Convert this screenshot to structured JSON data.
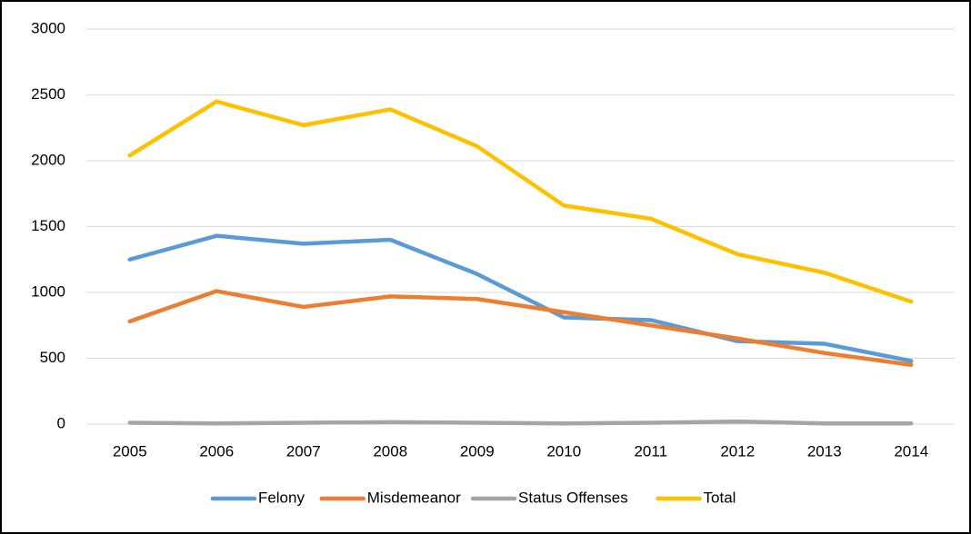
{
  "chart_data": {
    "type": "line",
    "categories": [
      "2005",
      "2006",
      "2007",
      "2008",
      "2009",
      "2010",
      "2011",
      "2012",
      "2013",
      "2014"
    ],
    "series": [
      {
        "name": "Felony",
        "color": "#5b9bd5",
        "values": [
          1250,
          1430,
          1370,
          1400,
          1140,
          810,
          790,
          630,
          610,
          480
        ]
      },
      {
        "name": "Misdemeanor",
        "color": "#ed7d31",
        "values": [
          780,
          1010,
          890,
          970,
          950,
          850,
          750,
          650,
          540,
          450
        ]
      },
      {
        "name": "Status Offenses",
        "color": "#a5a5a5",
        "values": [
          10,
          5,
          10,
          15,
          10,
          5,
          10,
          20,
          5,
          5
        ]
      },
      {
        "name": "Total",
        "color": "#ffc000",
        "values": [
          2040,
          2450,
          2270,
          2390,
          2110,
          1660,
          1560,
          1290,
          1150,
          930
        ]
      }
    ],
    "ylim": [
      0,
      3000
    ],
    "yticks": [
      0,
      500,
      1000,
      1500,
      2000,
      2500,
      3000
    ],
    "grid": true,
    "legend": "bottom"
  }
}
